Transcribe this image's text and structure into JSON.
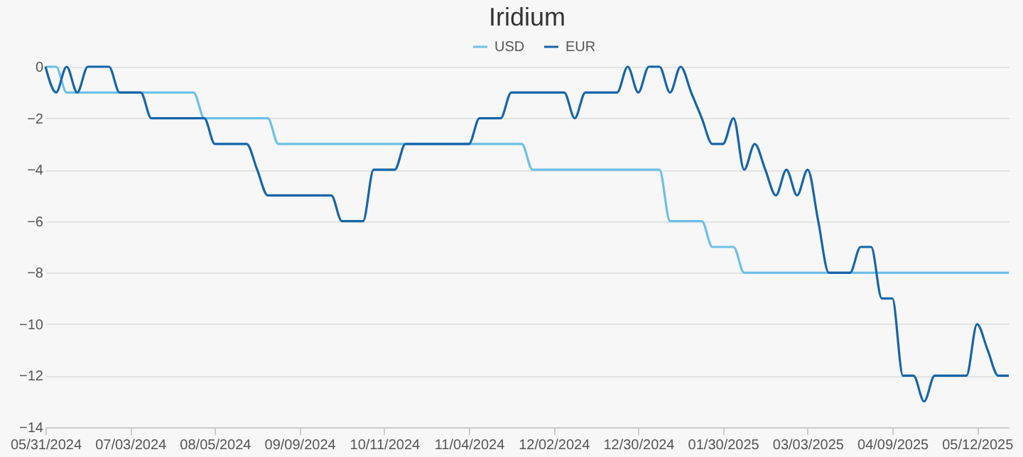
{
  "chart_data": {
    "type": "line",
    "title": "Iridium",
    "categories": [
      "05/31/2024",
      null,
      null,
      null,
      null,
      null,
      null,
      null,
      "07/03/2024",
      null,
      null,
      null,
      null,
      null,
      null,
      null,
      "08/05/2024",
      null,
      null,
      null,
      null,
      null,
      null,
      null,
      "09/09/2024",
      null,
      null,
      null,
      null,
      null,
      null,
      null,
      "10/11/2024",
      null,
      null,
      null,
      null,
      null,
      null,
      null,
      "11/04/2024",
      null,
      null,
      null,
      null,
      null,
      null,
      null,
      "12/02/2024",
      null,
      null,
      null,
      null,
      null,
      null,
      null,
      "12/30/2024",
      null,
      null,
      null,
      null,
      null,
      null,
      null,
      "01/30/2025",
      null,
      null,
      null,
      null,
      null,
      null,
      null,
      "03/03/2025",
      null,
      null,
      null,
      null,
      null,
      null,
      null,
      "04/09/2025",
      null,
      null,
      null,
      null,
      null,
      null,
      null,
      "05/12/2025",
      null,
      null,
      null
    ],
    "series": [
      {
        "name": "USD",
        "color": "#6cc0e8",
        "values": [
          0,
          0,
          -1,
          -1,
          -1,
          -1,
          -1,
          -1,
          -1,
          -1,
          -1,
          -1,
          -1,
          -1,
          -1,
          -2,
          -2,
          -2,
          -2,
          -2,
          -2,
          -2,
          -3,
          -3,
          -3,
          -3,
          -3,
          -3,
          -3,
          -3,
          -3,
          -3,
          -3,
          -3,
          -3,
          -3,
          -3,
          -3,
          -3,
          -3,
          -3,
          -3,
          -3,
          -3,
          -3,
          -3,
          -4,
          -4,
          -4,
          -4,
          -4,
          -4,
          -4,
          -4,
          -4,
          -4,
          -4,
          -4,
          -4,
          -6,
          -6,
          -6,
          -6,
          -7,
          -7,
          -7,
          -8,
          -8,
          -8,
          -8,
          -8,
          -8,
          -8,
          -8,
          -8,
          -8,
          -8,
          -8,
          -8,
          -8,
          -8,
          -8,
          -8,
          -8,
          -8,
          -8,
          -8,
          -8,
          -8,
          -8,
          -8,
          -8
        ]
      },
      {
        "name": "EUR",
        "color": "#1565a8",
        "values": [
          0,
          -1,
          0,
          -1,
          0,
          0,
          0,
          -1,
          -1,
          -1,
          -2,
          -2,
          -2,
          -2,
          -2,
          -2,
          -3,
          -3,
          -3,
          -3,
          -4,
          -5,
          -5,
          -5,
          -5,
          -5,
          -5,
          -5,
          -6,
          -6,
          -6,
          -4,
          -4,
          -4,
          -3,
          -3,
          -3,
          -3,
          -3,
          -3,
          -3,
          -2,
          -2,
          -2,
          -1,
          -1,
          -1,
          -1,
          -1,
          -1,
          -2,
          -1,
          -1,
          -1,
          -1,
          0,
          -1,
          0,
          0,
          -1,
          0,
          -1,
          -2,
          -3,
          -3,
          -2,
          -4,
          -3,
          -4,
          -5,
          -4,
          -5,
          -4,
          -6,
          -8,
          -8,
          -8,
          -7,
          -7,
          -9,
          -9,
          -12,
          -12,
          -13,
          -12,
          -12,
          -12,
          -12,
          -10,
          -11,
          -12,
          -12
        ]
      }
    ],
    "ylim": [
      -14,
      0
    ],
    "yticks": [
      0,
      -2,
      -4,
      -6,
      -8,
      -10,
      -12,
      -14
    ],
    "grid": "y",
    "legend": "top"
  }
}
